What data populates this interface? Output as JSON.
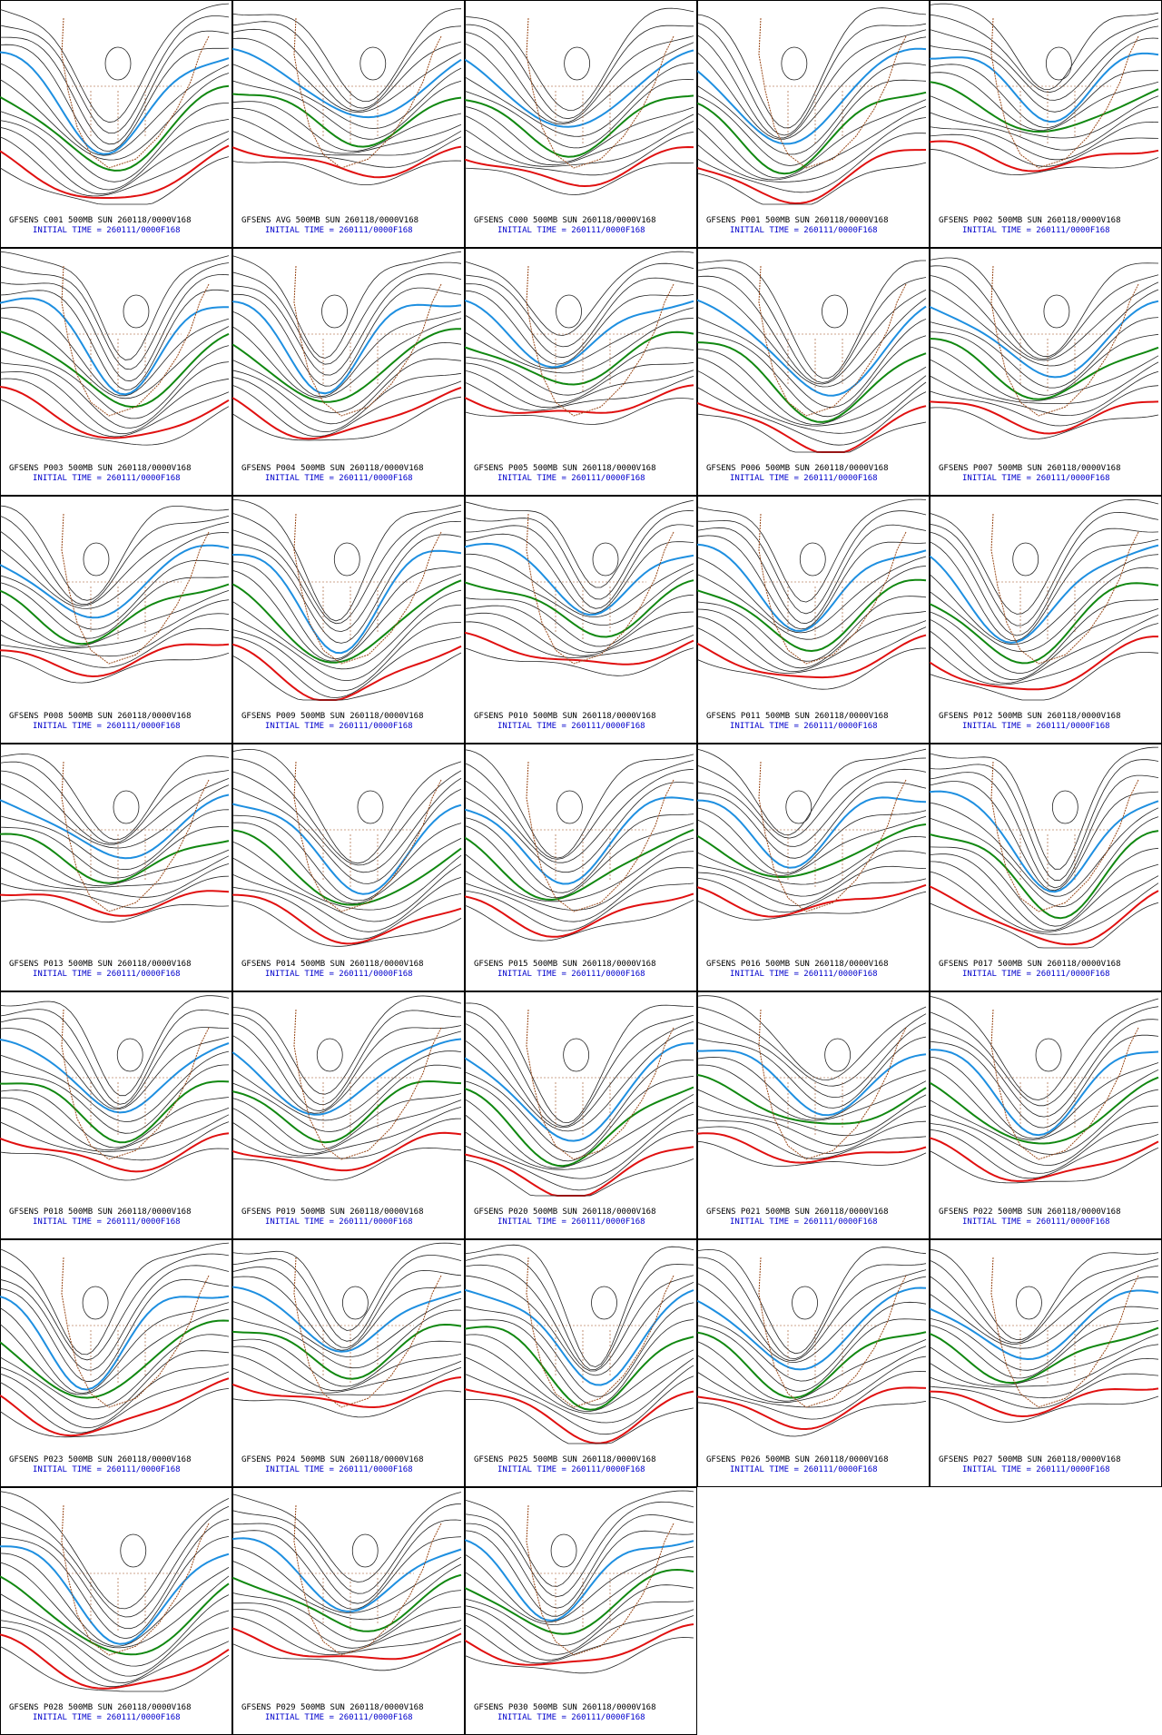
{
  "panels": [
    {
      "title": "GFSENS C001 500MB SUN 260118/0000V168",
      "initial_time": "INITIAL TIME = 260111/0000F168"
    },
    {
      "title": "GFSENS AVG 500MB SUN 260118/0000V168",
      "initial_time": "INITIAL TIME = 260111/0000F168"
    },
    {
      "title": "GFSENS C000 500MB SUN 260118/0000V168",
      "initial_time": "INITIAL TIME = 260111/0000F168"
    },
    {
      "title": "GFSENS P001 500MB SUN 260118/0000V168",
      "initial_time": "INITIAL TIME = 260111/0000F168"
    },
    {
      "title": "GFSENS P002 500MB SUN 260118/0000V168",
      "initial_time": "INITIAL TIME = 260111/0000F168"
    },
    {
      "title": "GFSENS P003 500MB SUN 260118/0000V168",
      "initial_time": "INITIAL TIME = 260111/0000F168"
    },
    {
      "title": "GFSENS P004 500MB SUN 260118/0000V168",
      "initial_time": "INITIAL TIME = 260111/0000F168"
    },
    {
      "title": "GFSENS P005 500MB SUN 260118/0000V168",
      "initial_time": "INITIAL TIME = 260111/0000F168"
    },
    {
      "title": "GFSENS P006 500MB SUN 260118/0000V168",
      "initial_time": "INITIAL TIME = 260111/0000F168"
    },
    {
      "title": "GFSENS P007 500MB SUN 260118/0000V168",
      "initial_time": "INITIAL TIME = 260111/0000F168"
    },
    {
      "title": "GFSENS P008 500MB SUN 260118/0000V168",
      "initial_time": "INITIAL TIME = 260111/0000F168"
    },
    {
      "title": "GFSENS P009 500MB SUN 260118/0000V168",
      "initial_time": "INITIAL TIME = 260111/0000F168"
    },
    {
      "title": "GFSENS P010 500MB SUN 260118/0000V168",
      "initial_time": "INITIAL TIME = 260111/0000F168"
    },
    {
      "title": "GFSENS P011 500MB SUN 260118/0000V168",
      "initial_time": "INITIAL TIME = 260111/0000F168"
    },
    {
      "title": "GFSENS P012 500MB SUN 260118/0000V168",
      "initial_time": "INITIAL TIME = 260111/0000F168"
    },
    {
      "title": "GFSENS P013 500MB SUN 260118/0000V168",
      "initial_time": "INITIAL TIME = 260111/0000F168"
    },
    {
      "title": "GFSENS P014 500MB SUN 260118/0000V168",
      "initial_time": "INITIAL TIME = 260111/0000F168"
    },
    {
      "title": "GFSENS P015 500MB SUN 260118/0000V168",
      "initial_time": "INITIAL TIME = 260111/0000F168"
    },
    {
      "title": "GFSENS P016 500MB SUN 260118/0000V168",
      "initial_time": "INITIAL TIME = 260111/0000F168"
    },
    {
      "title": "GFSENS P017 500MB SUN 260118/0000V168",
      "initial_time": "INITIAL TIME = 260111/0000F168"
    },
    {
      "title": "GFSENS P018 500MB SUN 260118/0000V168",
      "initial_time": "INITIAL TIME = 260111/0000F168"
    },
    {
      "title": "GFSENS P019 500MB SUN 260118/0000V168",
      "initial_time": "INITIAL TIME = 260111/0000F168"
    },
    {
      "title": "GFSENS P020 500MB SUN 260118/0000V168",
      "initial_time": "INITIAL TIME = 260111/0000F168"
    },
    {
      "title": "GFSENS P021 500MB SUN 260118/0000V168",
      "initial_time": "INITIAL TIME = 260111/0000F168"
    },
    {
      "title": "GFSENS P022 500MB SUN 260118/0000V168",
      "initial_time": "INITIAL TIME = 260111/0000F168"
    },
    {
      "title": "GFSENS P023 500MB SUN 260118/0000V168",
      "initial_time": "INITIAL TIME = 260111/0000F168"
    },
    {
      "title": "GFSENS P024 500MB SUN 260118/0000V168",
      "initial_time": "INITIAL TIME = 260111/0000F168"
    },
    {
      "title": "GFSENS P025 500MB SUN 260118/0000V168",
      "initial_time": "INITIAL TIME = 260111/0000F168"
    },
    {
      "title": "GFSENS P026 500MB SUN 260118/0000V168",
      "initial_time": "INITIAL TIME = 260111/0000F168"
    },
    {
      "title": "GFSENS P027 500MB SUN 260118/0000V168",
      "initial_time": "INITIAL TIME = 260111/0000F168"
    },
    {
      "title": "GFSENS P028 500MB SUN 260118/0000V168",
      "initial_time": "INITIAL TIME = 260111/0000F168"
    },
    {
      "title": "GFSENS P029 500MB SUN 260118/0000V168",
      "initial_time": "INITIAL TIME = 260111/0000F168"
    },
    {
      "title": "GFSENS P030 500MB SUN 260118/0000V168",
      "initial_time": "INITIAL TIME = 260111/0000F168"
    }
  ]
}
